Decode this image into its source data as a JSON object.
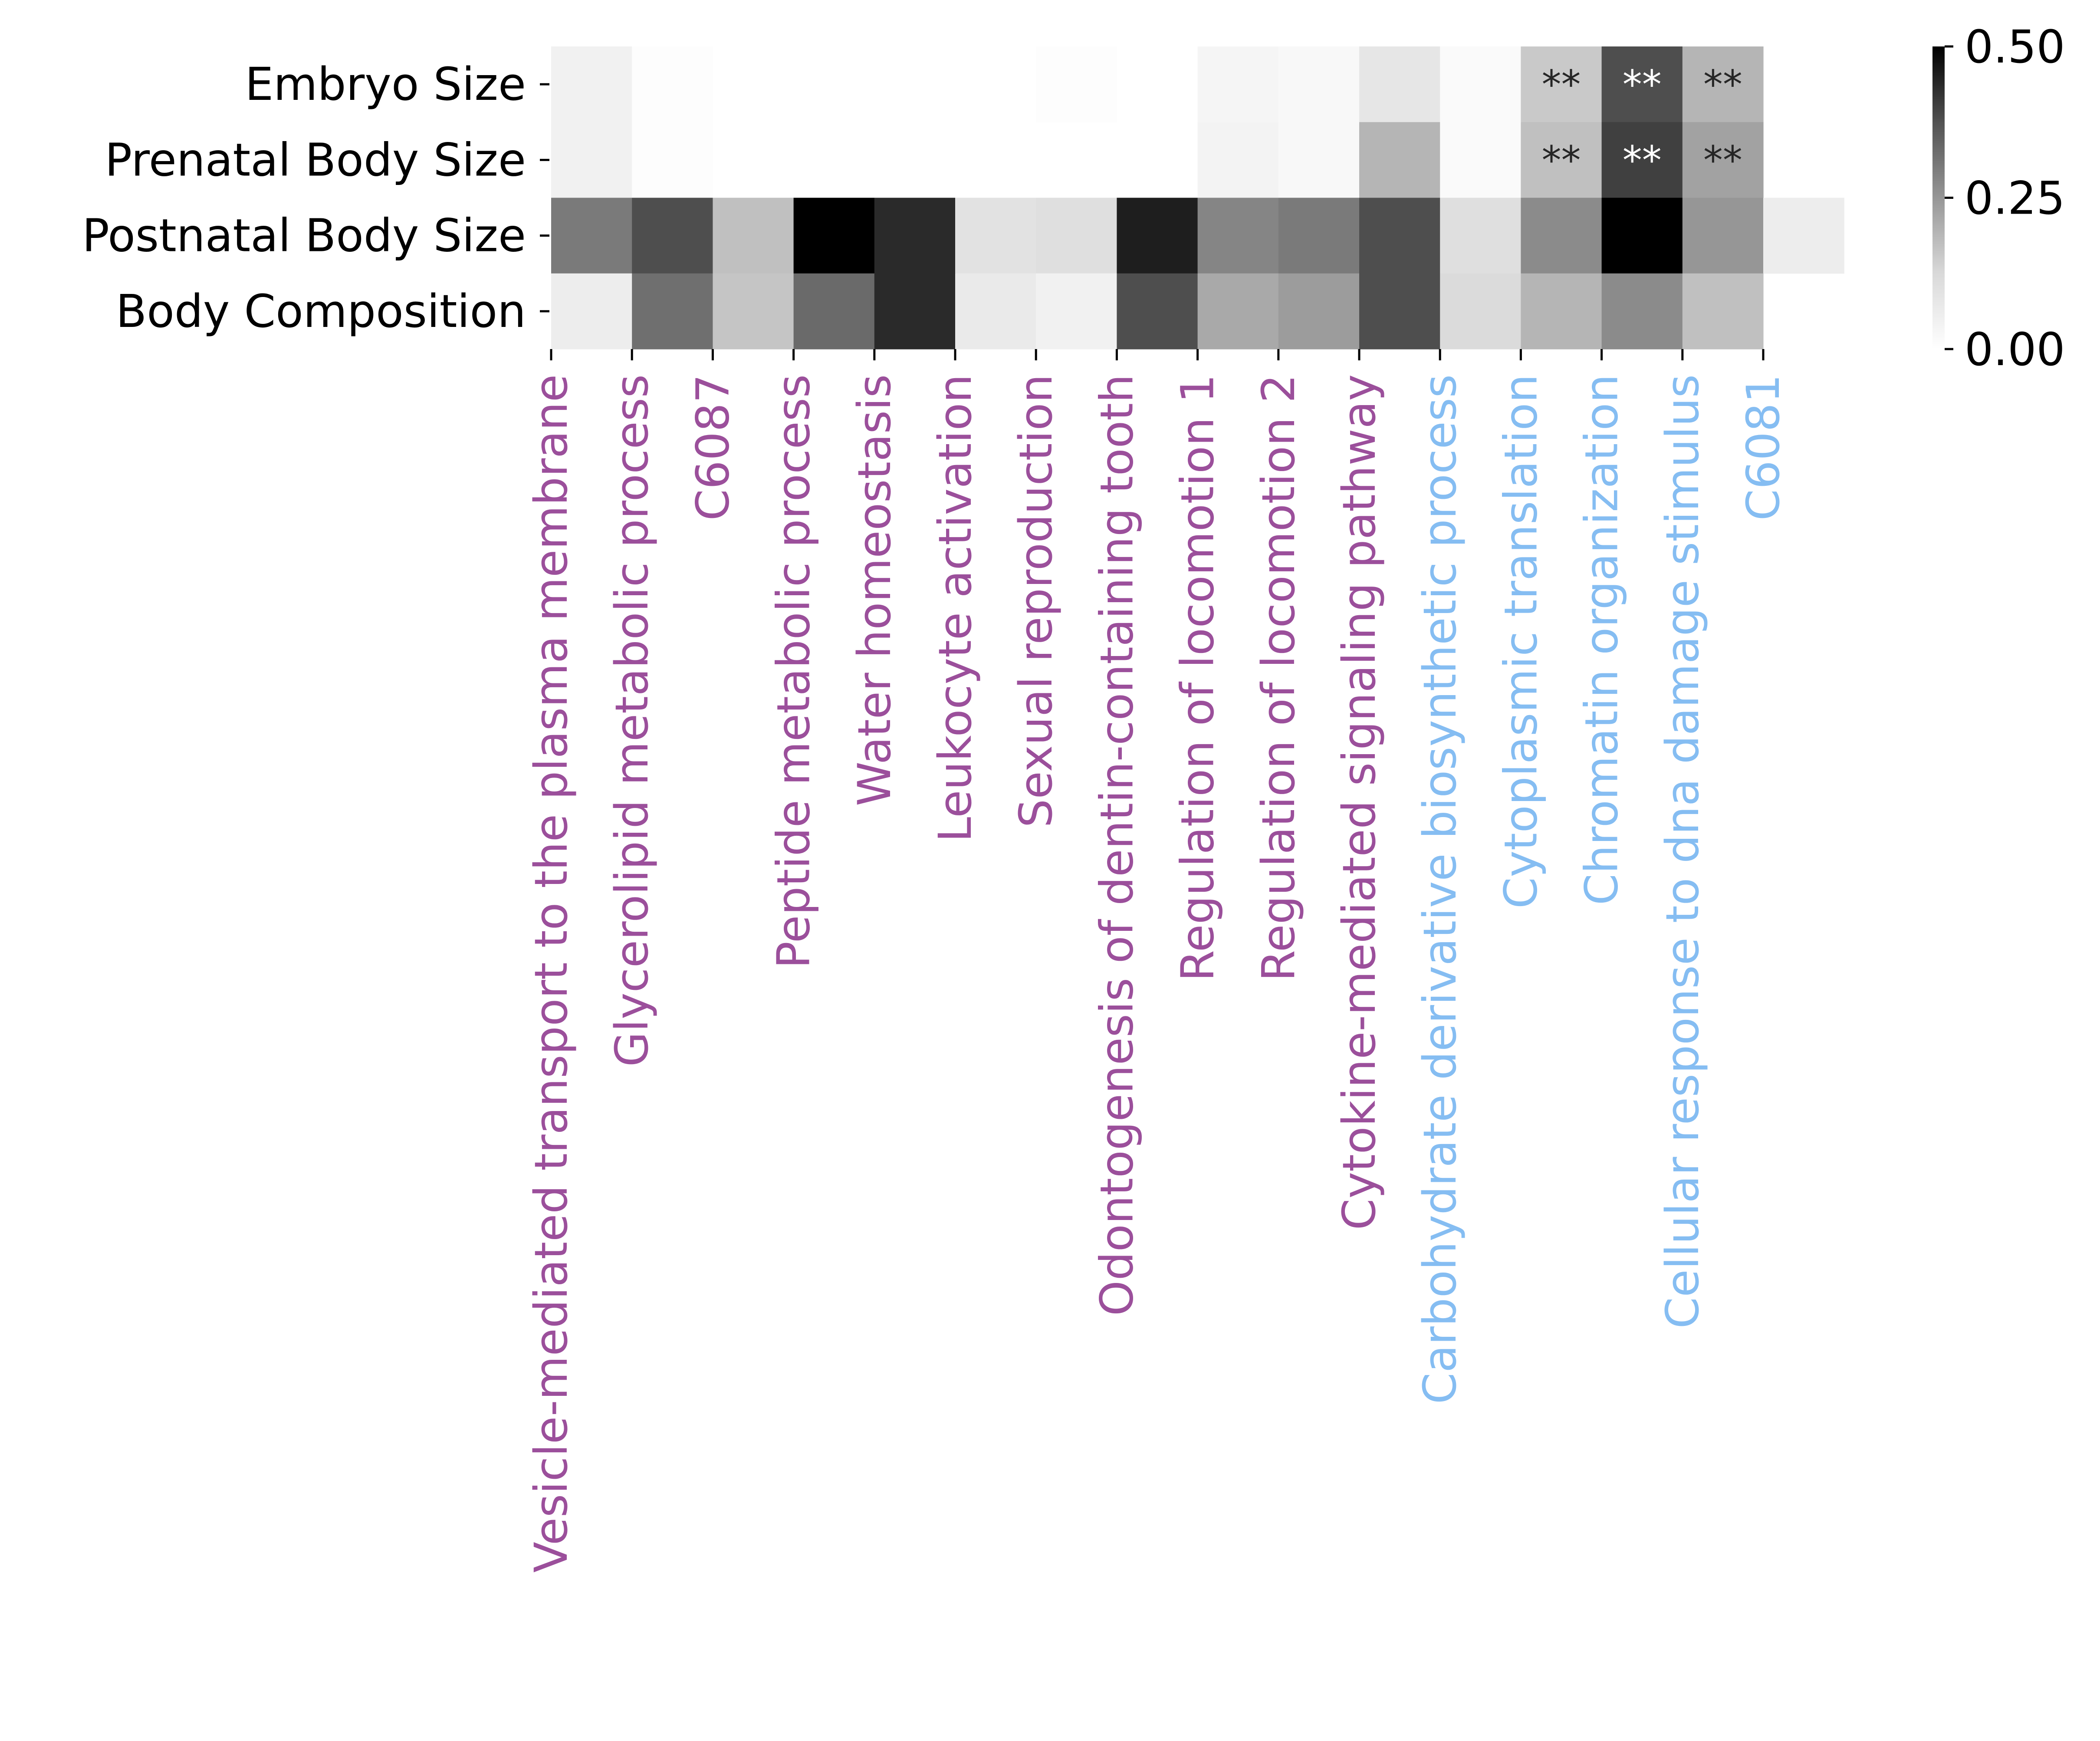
{
  "chart_data": {
    "type": "heatmap",
    "title": "",
    "xlabel": "",
    "ylabel": "",
    "rows": [
      "Embryo Size",
      "Prenatal Body Size",
      "Postnatal Body Size",
      "Body Composition"
    ],
    "columns": [
      {
        "label": "Vesicle-mediated transport to the plasma membrane",
        "group": "purple"
      },
      {
        "label": "Glycerolipid metabolic process",
        "group": "purple"
      },
      {
        "label": "C6087",
        "group": "purple"
      },
      {
        "label": "Peptide metabolic process",
        "group": "purple"
      },
      {
        "label": "Water homeostasis",
        "group": "purple"
      },
      {
        "label": "Leukocyte activation",
        "group": "purple"
      },
      {
        "label": "Sexual reproduction",
        "group": "purple"
      },
      {
        "label": "Odontogenesis of dentin-containing tooth",
        "group": "purple"
      },
      {
        "label": "Regulation of locomotion 1",
        "group": "purple"
      },
      {
        "label": "Regulation of locomotion 2",
        "group": "purple"
      },
      {
        "label": "Cytokine-mediated signaling pathway",
        "group": "purple"
      },
      {
        "label": "Carbohydrate derivative biosynthetic process",
        "group": "blue"
      },
      {
        "label": "Cytoplasmic translation",
        "group": "blue"
      },
      {
        "label": "Chromatin organization",
        "group": "blue"
      },
      {
        "label": "Cellular response to dna damage stimulus",
        "group": "blue"
      },
      {
        "label": "C6081",
        "group": "blue"
      }
    ],
    "values": [
      [
        0.06,
        0.01,
        0.0,
        0.0,
        0.0,
        0.0,
        0.01,
        0.0,
        0.04,
        0.03,
        0.09,
        0.02,
        0.16,
        0.38,
        0.2,
        null
      ],
      [
        0.06,
        0.01,
        0.0,
        0.0,
        0.0,
        0.0,
        0.0,
        0.0,
        0.05,
        0.03,
        0.2,
        0.02,
        0.18,
        0.4,
        0.23,
        null
      ],
      [
        0.3,
        0.38,
        0.18,
        0.5,
        0.43,
        0.1,
        0.11,
        0.45,
        0.28,
        0.3,
        0.38,
        0.11,
        0.27,
        0.5,
        0.25,
        0.07
      ],
      [
        0.07,
        0.32,
        0.17,
        0.33,
        0.43,
        0.08,
        0.06,
        0.38,
        0.22,
        0.24,
        0.38,
        0.12,
        0.2,
        0.27,
        0.18,
        null
      ]
    ],
    "annotations": [
      {
        "row": 0,
        "col": 12,
        "text": "**"
      },
      {
        "row": 0,
        "col": 13,
        "text": "**"
      },
      {
        "row": 0,
        "col": 14,
        "text": "**"
      },
      {
        "row": 1,
        "col": 12,
        "text": "**"
      },
      {
        "row": 1,
        "col": 13,
        "text": "**"
      },
      {
        "row": 1,
        "col": 14,
        "text": "**"
      }
    ],
    "vmin": 0.0,
    "vmax": 0.5,
    "colormap": "Greys",
    "colorbar_ticks": [
      "0.00",
      "0.25",
      "0.50"
    ],
    "group_colors": {
      "purple": "#9b4f9b",
      "blue": "#85bdf2"
    }
  }
}
